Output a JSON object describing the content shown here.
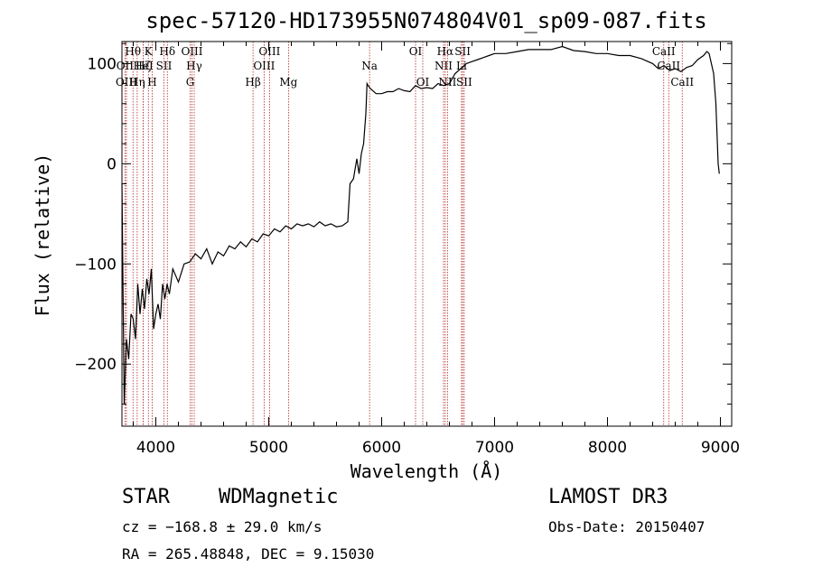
{
  "chart_data": {
    "type": "line",
    "title": "spec-57120-HD173955N074804V01_sp09-087.fits",
    "xlabel": "Wavelength (Å)",
    "ylabel": "Flux (relative)",
    "xlim": [
      3700,
      9100
    ],
    "ylim": [
      -262,
      122
    ],
    "xticks": [
      4000,
      5000,
      6000,
      7000,
      8000,
      9000
    ],
    "yticks": [
      100,
      0,
      -100,
      -200
    ],
    "grid": false,
    "series": [
      {
        "name": "flux",
        "x": [
          3700,
          3720,
          3740,
          3760,
          3780,
          3800,
          3820,
          3840,
          3860,
          3880,
          3900,
          3920,
          3940,
          3960,
          3980,
          4000,
          4020,
          4040,
          4060,
          4080,
          4100,
          4120,
          4150,
          4200,
          4250,
          4300,
          4350,
          4400,
          4450,
          4500,
          4550,
          4600,
          4650,
          4700,
          4750,
          4800,
          4850,
          4900,
          4950,
          5000,
          5050,
          5100,
          5150,
          5200,
          5250,
          5300,
          5350,
          5400,
          5450,
          5500,
          5550,
          5600,
          5650,
          5700,
          5720,
          5750,
          5780,
          5800,
          5820,
          5840,
          5860,
          5870,
          5880,
          5900,
          5950,
          6000,
          6050,
          6100,
          6150,
          6200,
          6250,
          6300,
          6350,
          6400,
          6450,
          6500,
          6550,
          6600,
          6650,
          6700,
          6750,
          6800,
          6850,
          6900,
          6950,
          7000,
          7100,
          7200,
          7300,
          7400,
          7500,
          7600,
          7700,
          7800,
          7900,
          8000,
          8100,
          8200,
          8300,
          8400,
          8450,
          8500,
          8550,
          8600,
          8650,
          8700,
          8750,
          8800,
          8850,
          8880,
          8900,
          8920,
          8940,
          8960,
          8980,
          8990
        ],
        "y": [
          -20,
          -240,
          -175,
          -195,
          -150,
          -155,
          -175,
          -120,
          -150,
          -125,
          -145,
          -115,
          -130,
          -105,
          -165,
          -150,
          -140,
          -155,
          -120,
          -135,
          -120,
          -130,
          -105,
          -118,
          -100,
          -98,
          -90,
          -95,
          -85,
          -100,
          -88,
          -92,
          -82,
          -85,
          -78,
          -83,
          -75,
          -78,
          -70,
          -72,
          -65,
          -68,
          -62,
          -65,
          -60,
          -62,
          -60,
          -63,
          -58,
          -62,
          -60,
          -63,
          -62,
          -58,
          -20,
          -15,
          5,
          -10,
          10,
          20,
          50,
          80,
          78,
          75,
          70,
          70,
          72,
          72,
          75,
          73,
          72,
          78,
          75,
          76,
          75,
          80,
          78,
          80,
          90,
          95,
          100,
          102,
          104,
          106,
          108,
          110,
          110,
          112,
          114,
          114,
          114,
          117,
          113,
          112,
          110,
          110,
          108,
          108,
          105,
          100,
          95,
          98,
          93,
          95,
          92,
          96,
          98,
          104,
          108,
          112,
          110,
          100,
          90,
          60,
          0,
          -10
        ]
      }
    ],
    "lines": [
      {
        "label": "Hθ",
        "wl": 3798,
        "row": 1
      },
      {
        "label": "OII",
        "wl": 3727,
        "row": 2
      },
      {
        "label": "OIII",
        "wl": 3740,
        "row": 3
      },
      {
        "label": "Hη",
        "wl": 3835,
        "row": 3
      },
      {
        "label": "Hζ",
        "wl": 3889,
        "row": 2
      },
      {
        "label": "HeI",
        "wl": 3889,
        "row": 2
      },
      {
        "label": "K",
        "wl": 3934,
        "row": 1
      },
      {
        "label": "H",
        "wl": 3968,
        "row": 3
      },
      {
        "label": "SII",
        "wl": 4072,
        "row": 2
      },
      {
        "label": "Hδ",
        "wl": 4102,
        "row": 1
      },
      {
        "label": "OIII",
        "wl": 4320,
        "row": 1
      },
      {
        "label": "Hγ",
        "wl": 4340,
        "row": 2
      },
      {
        "label": "G",
        "wl": 4304,
        "row": 3
      },
      {
        "label": "Hβ",
        "wl": 4861,
        "row": 3
      },
      {
        "label": "OIII",
        "wl": 4959,
        "row": 2
      },
      {
        "label": "OIII",
        "wl": 5007,
        "row": 1
      },
      {
        "label": "Mg",
        "wl": 5175,
        "row": 3
      },
      {
        "label": "Na",
        "wl": 5893,
        "row": 2
      },
      {
        "label": "OI",
        "wl": 6300,
        "row": 1
      },
      {
        "label": "OI",
        "wl": 6364,
        "row": 3
      },
      {
        "label": "NII",
        "wl": 6548,
        "row": 2
      },
      {
        "label": "Hα",
        "wl": 6563,
        "row": 1
      },
      {
        "label": "NII",
        "wl": 6583,
        "row": 3
      },
      {
        "label": "SII",
        "wl": 6717,
        "row": 1
      },
      {
        "label": "Li",
        "wl": 6707,
        "row": 2
      },
      {
        "label": "SII",
        "wl": 6731,
        "row": 3
      },
      {
        "label": "CaII",
        "wl": 8498,
        "row": 1
      },
      {
        "label": "CaII",
        "wl": 8542,
        "row": 2
      },
      {
        "label": "CaII",
        "wl": 8662,
        "row": 3
      }
    ]
  },
  "info": {
    "class_label": "STAR",
    "subclass": "WDMagnetic",
    "survey": "LAMOST DR3",
    "cz": "cz = −168.8 ± 29.0 km/s",
    "obs_date": "Obs-Date: 20150407",
    "coords": "RA = 265.48848, DEC =   9.15030"
  },
  "colors": {
    "axis": "#000000",
    "spectrum": "#000000",
    "line_marker": "#b22222"
  }
}
